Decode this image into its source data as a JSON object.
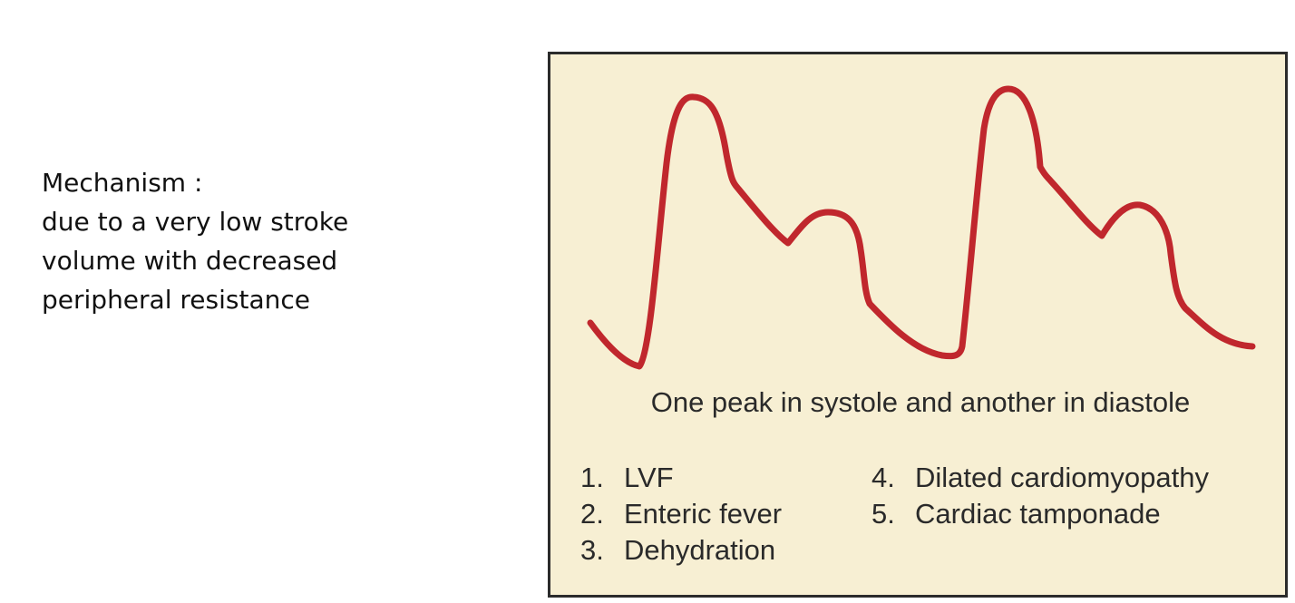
{
  "mechanism": {
    "heading": "Mechanism :",
    "lines": [
      "due to a very low stroke",
      "volume with decreased",
      "peripheral resistance"
    ]
  },
  "diagram": {
    "caption": "One peak in systole and another in diastole",
    "waveform_color": "#c0272d",
    "background_color": "#f7efd3",
    "causes_left": [
      {
        "num": "1.",
        "label": "LVF"
      },
      {
        "num": "2.",
        "label": "Enteric fever"
      },
      {
        "num": "3.",
        "label": "Dehydration"
      }
    ],
    "causes_right": [
      {
        "num": "4.",
        "label": "Dilated cardiomyopathy"
      },
      {
        "num": "5.",
        "label": "Cardiac tamponade"
      }
    ]
  }
}
